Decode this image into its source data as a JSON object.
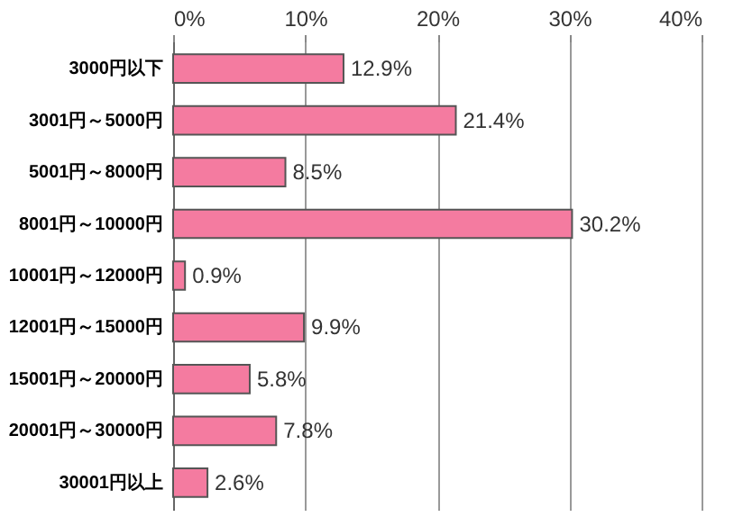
{
  "chart_data": {
    "type": "bar",
    "orientation": "horizontal",
    "categories": [
      "3000円以下",
      "3001円～5000円",
      "5001円～8000円",
      "8001円～10000円",
      "10001円～12000円",
      "12001円～15000円",
      "15001円～20000円",
      "20001円～30000円",
      "30001円以上"
    ],
    "values": [
      12.9,
      21.4,
      8.5,
      30.2,
      0.9,
      9.9,
      5.8,
      7.8,
      2.6
    ],
    "value_labels": [
      "12.9%",
      "21.4%",
      "8.5%",
      "30.2%",
      "0.9%",
      "9.9%",
      "5.8%",
      "7.8%",
      "2.6%"
    ],
    "color": "#f47ba0",
    "xlim": [
      0,
      40
    ],
    "xticks": [
      {
        "value": 0,
        "label": "0%"
      },
      {
        "value": 10,
        "label": "10%"
      },
      {
        "value": 20,
        "label": "20%"
      },
      {
        "value": 30,
        "label": "30%"
      },
      {
        "value": 40,
        "label": "40%"
      }
    ],
    "grid": "x"
  }
}
